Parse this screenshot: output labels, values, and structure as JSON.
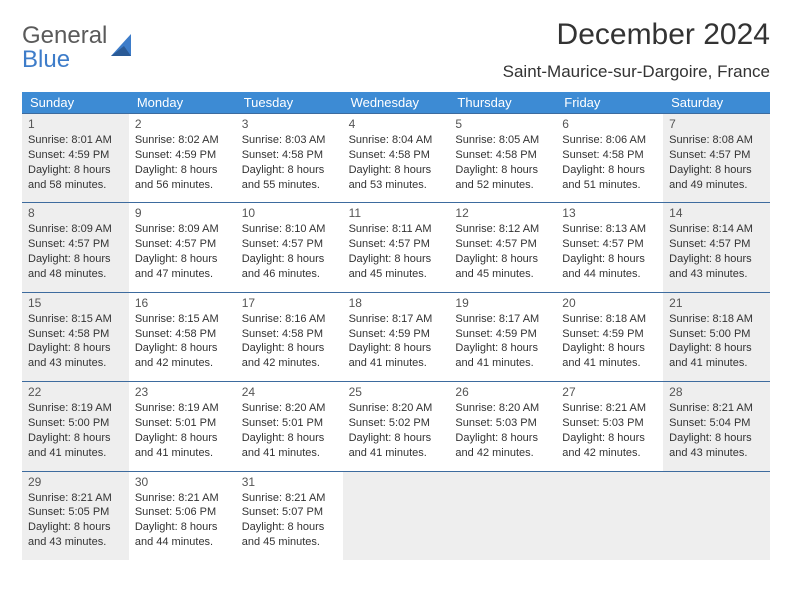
{
  "logo": {
    "word1": "General",
    "word2": "Blue"
  },
  "title": "December 2024",
  "location": "Saint-Maurice-sur-Dargoire, France",
  "colors": {
    "header_bg": "#3d8bd4",
    "header_text": "#ffffff",
    "cell_border": "#3d6b9e",
    "shaded_bg": "#eeeeee",
    "body_text": "#333333",
    "logo_gray": "#5a5a5a",
    "logo_blue": "#3d7cc9"
  },
  "fonts": {
    "title_size_pt": 22,
    "location_size_pt": 13,
    "header_size_pt": 10,
    "cell_size_pt": 8
  },
  "dayNames": [
    "Sunday",
    "Monday",
    "Tuesday",
    "Wednesday",
    "Thursday",
    "Friday",
    "Saturday"
  ],
  "weeks": [
    [
      {
        "n": "1",
        "shaded": true,
        "sr": "Sunrise: 8:01 AM",
        "ss": "Sunset: 4:59 PM",
        "d1": "Daylight: 8 hours",
        "d2": "and 58 minutes."
      },
      {
        "n": "2",
        "shaded": false,
        "sr": "Sunrise: 8:02 AM",
        "ss": "Sunset: 4:59 PM",
        "d1": "Daylight: 8 hours",
        "d2": "and 56 minutes."
      },
      {
        "n": "3",
        "shaded": false,
        "sr": "Sunrise: 8:03 AM",
        "ss": "Sunset: 4:58 PM",
        "d1": "Daylight: 8 hours",
        "d2": "and 55 minutes."
      },
      {
        "n": "4",
        "shaded": false,
        "sr": "Sunrise: 8:04 AM",
        "ss": "Sunset: 4:58 PM",
        "d1": "Daylight: 8 hours",
        "d2": "and 53 minutes."
      },
      {
        "n": "5",
        "shaded": false,
        "sr": "Sunrise: 8:05 AM",
        "ss": "Sunset: 4:58 PM",
        "d1": "Daylight: 8 hours",
        "d2": "and 52 minutes."
      },
      {
        "n": "6",
        "shaded": false,
        "sr": "Sunrise: 8:06 AM",
        "ss": "Sunset: 4:58 PM",
        "d1": "Daylight: 8 hours",
        "d2": "and 51 minutes."
      },
      {
        "n": "7",
        "shaded": true,
        "sr": "Sunrise: 8:08 AM",
        "ss": "Sunset: 4:57 PM",
        "d1": "Daylight: 8 hours",
        "d2": "and 49 minutes."
      }
    ],
    [
      {
        "n": "8",
        "shaded": true,
        "sr": "Sunrise: 8:09 AM",
        "ss": "Sunset: 4:57 PM",
        "d1": "Daylight: 8 hours",
        "d2": "and 48 minutes."
      },
      {
        "n": "9",
        "shaded": false,
        "sr": "Sunrise: 8:09 AM",
        "ss": "Sunset: 4:57 PM",
        "d1": "Daylight: 8 hours",
        "d2": "and 47 minutes."
      },
      {
        "n": "10",
        "shaded": false,
        "sr": "Sunrise: 8:10 AM",
        "ss": "Sunset: 4:57 PM",
        "d1": "Daylight: 8 hours",
        "d2": "and 46 minutes."
      },
      {
        "n": "11",
        "shaded": false,
        "sr": "Sunrise: 8:11 AM",
        "ss": "Sunset: 4:57 PM",
        "d1": "Daylight: 8 hours",
        "d2": "and 45 minutes."
      },
      {
        "n": "12",
        "shaded": false,
        "sr": "Sunrise: 8:12 AM",
        "ss": "Sunset: 4:57 PM",
        "d1": "Daylight: 8 hours",
        "d2": "and 45 minutes."
      },
      {
        "n": "13",
        "shaded": false,
        "sr": "Sunrise: 8:13 AM",
        "ss": "Sunset: 4:57 PM",
        "d1": "Daylight: 8 hours",
        "d2": "and 44 minutes."
      },
      {
        "n": "14",
        "shaded": true,
        "sr": "Sunrise: 8:14 AM",
        "ss": "Sunset: 4:57 PM",
        "d1": "Daylight: 8 hours",
        "d2": "and 43 minutes."
      }
    ],
    [
      {
        "n": "15",
        "shaded": true,
        "sr": "Sunrise: 8:15 AM",
        "ss": "Sunset: 4:58 PM",
        "d1": "Daylight: 8 hours",
        "d2": "and 43 minutes."
      },
      {
        "n": "16",
        "shaded": false,
        "sr": "Sunrise: 8:15 AM",
        "ss": "Sunset: 4:58 PM",
        "d1": "Daylight: 8 hours",
        "d2": "and 42 minutes."
      },
      {
        "n": "17",
        "shaded": false,
        "sr": "Sunrise: 8:16 AM",
        "ss": "Sunset: 4:58 PM",
        "d1": "Daylight: 8 hours",
        "d2": "and 42 minutes."
      },
      {
        "n": "18",
        "shaded": false,
        "sr": "Sunrise: 8:17 AM",
        "ss": "Sunset: 4:59 PM",
        "d1": "Daylight: 8 hours",
        "d2": "and 41 minutes."
      },
      {
        "n": "19",
        "shaded": false,
        "sr": "Sunrise: 8:17 AM",
        "ss": "Sunset: 4:59 PM",
        "d1": "Daylight: 8 hours",
        "d2": "and 41 minutes."
      },
      {
        "n": "20",
        "shaded": false,
        "sr": "Sunrise: 8:18 AM",
        "ss": "Sunset: 4:59 PM",
        "d1": "Daylight: 8 hours",
        "d2": "and 41 minutes."
      },
      {
        "n": "21",
        "shaded": true,
        "sr": "Sunrise: 8:18 AM",
        "ss": "Sunset: 5:00 PM",
        "d1": "Daylight: 8 hours",
        "d2": "and 41 minutes."
      }
    ],
    [
      {
        "n": "22",
        "shaded": true,
        "sr": "Sunrise: 8:19 AM",
        "ss": "Sunset: 5:00 PM",
        "d1": "Daylight: 8 hours",
        "d2": "and 41 minutes."
      },
      {
        "n": "23",
        "shaded": false,
        "sr": "Sunrise: 8:19 AM",
        "ss": "Sunset: 5:01 PM",
        "d1": "Daylight: 8 hours",
        "d2": "and 41 minutes."
      },
      {
        "n": "24",
        "shaded": false,
        "sr": "Sunrise: 8:20 AM",
        "ss": "Sunset: 5:01 PM",
        "d1": "Daylight: 8 hours",
        "d2": "and 41 minutes."
      },
      {
        "n": "25",
        "shaded": false,
        "sr": "Sunrise: 8:20 AM",
        "ss": "Sunset: 5:02 PM",
        "d1": "Daylight: 8 hours",
        "d2": "and 41 minutes."
      },
      {
        "n": "26",
        "shaded": false,
        "sr": "Sunrise: 8:20 AM",
        "ss": "Sunset: 5:03 PM",
        "d1": "Daylight: 8 hours",
        "d2": "and 42 minutes."
      },
      {
        "n": "27",
        "shaded": false,
        "sr": "Sunrise: 8:21 AM",
        "ss": "Sunset: 5:03 PM",
        "d1": "Daylight: 8 hours",
        "d2": "and 42 minutes."
      },
      {
        "n": "28",
        "shaded": true,
        "sr": "Sunrise: 8:21 AM",
        "ss": "Sunset: 5:04 PM",
        "d1": "Daylight: 8 hours",
        "d2": "and 43 minutes."
      }
    ],
    [
      {
        "n": "29",
        "shaded": true,
        "sr": "Sunrise: 8:21 AM",
        "ss": "Sunset: 5:05 PM",
        "d1": "Daylight: 8 hours",
        "d2": "and 43 minutes."
      },
      {
        "n": "30",
        "shaded": false,
        "sr": "Sunrise: 8:21 AM",
        "ss": "Sunset: 5:06 PM",
        "d1": "Daylight: 8 hours",
        "d2": "and 44 minutes."
      },
      {
        "n": "31",
        "shaded": false,
        "sr": "Sunrise: 8:21 AM",
        "ss": "Sunset: 5:07 PM",
        "d1": "Daylight: 8 hours",
        "d2": "and 45 minutes."
      },
      {
        "empty": true
      },
      {
        "empty": true
      },
      {
        "empty": true
      },
      {
        "empty": true
      }
    ]
  ]
}
